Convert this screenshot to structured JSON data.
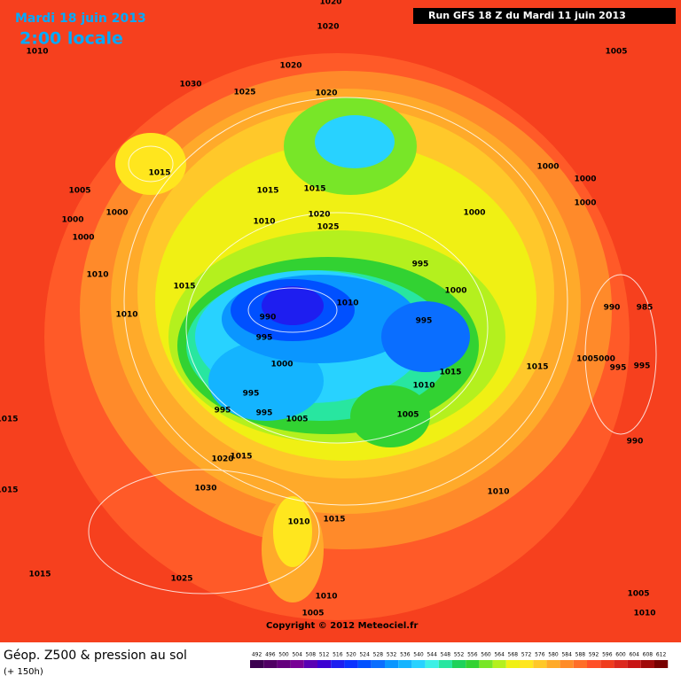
{
  "header": {
    "date": "Mardi 18 juin 2013",
    "time": "2:00 locale",
    "run": "Run GFS 18 Z du Mardi 11 juin 2013"
  },
  "isobar_labels": [
    "1020",
    "1010",
    "1030",
    "1025",
    "1020",
    "1020",
    "1020",
    "1005",
    "1015",
    "1005",
    "1000",
    "1000",
    "1000",
    "1015",
    "1015",
    "1010",
    "1020",
    "1025",
    "1000",
    "1000",
    "1000",
    "1000",
    "995",
    "1000",
    "1015",
    "1010",
    "1010",
    "990",
    "1010",
    "995",
    "995",
    "990",
    "985",
    "1000",
    "1015",
    "1005000",
    "995",
    "995",
    "1015",
    "1010",
    "995",
    "1005",
    "995",
    "995",
    "1005",
    "1015",
    "990",
    "1020",
    "1015",
    "1030",
    "1015",
    "1010",
    "1010",
    "1015",
    "1015",
    "1025",
    "1010",
    "1005",
    "1005",
    "1010"
  ],
  "copyright": "Copyright © 2012 Meteociel.fr",
  "footer": {
    "title": "Géop. Z500 & pression au sol",
    "lead": "(+ 150h)"
  },
  "scale": {
    "levels": [
      "492",
      "496",
      "500",
      "504",
      "508",
      "512",
      "516",
      "520",
      "524",
      "528",
      "532",
      "536",
      "540",
      "544",
      "548",
      "552",
      "556",
      "560",
      "564",
      "568",
      "572",
      "576",
      "580",
      "584",
      "588",
      "592",
      "596",
      "600",
      "604",
      "608",
      "612"
    ],
    "colors": [
      "#3c0050",
      "#500064",
      "#64007d",
      "#780096",
      "#5a00b4",
      "#3c00d2",
      "#1e1ef0",
      "#0a32ff",
      "#0050ff",
      "#0a6eff",
      "#0a96ff",
      "#14b4ff",
      "#28d2ff",
      "#3cf0e6",
      "#28e6a0",
      "#1ed25a",
      "#32d232",
      "#78e628",
      "#b4f01e",
      "#f0f014",
      "#ffe61e",
      "#ffc828",
      "#ffaa28",
      "#ff8c28",
      "#ff6e28",
      "#ff5028",
      "#f03c1e",
      "#dc281e",
      "#c81414",
      "#a00a0a",
      "#780000"
    ]
  }
}
